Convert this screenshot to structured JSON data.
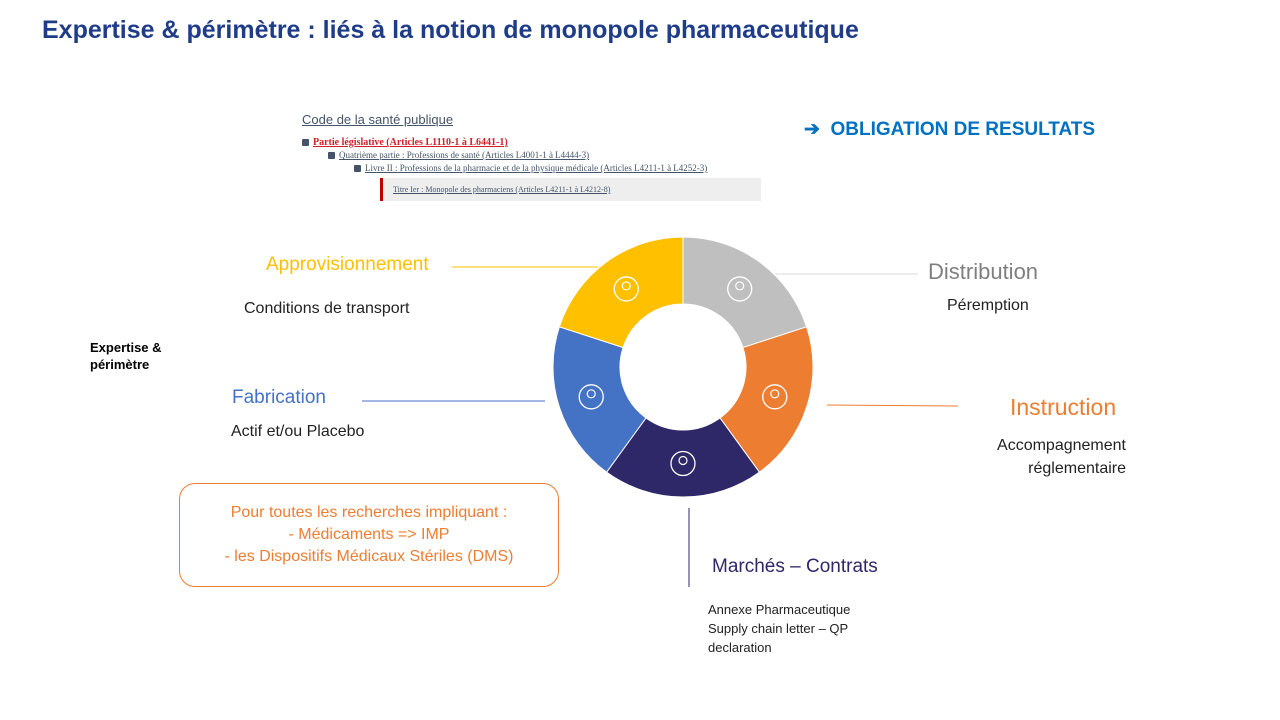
{
  "title": "Expertise & périmètre : liés à la notion de monopole pharmaceutique",
  "obligation": {
    "arrow_icon": "arrow-right-icon",
    "text": "OBLIGATION DE RESULTATS"
  },
  "code": {
    "heading": "Code de la santé publique",
    "items": [
      "Partie législative (Articles L1110-1 à L6441-1)",
      "Quatrième partie : Professions de santé (Articles L4001-1 à L4444-3)",
      "Livre II : Professions de la pharmacie et de la physique médicale (Articles L4211-1 à L4252-3)",
      "Titre Ier : Monopole des pharmaciens (Articles L4211-1 à L4212-8)"
    ]
  },
  "side_label": "Expertise & périmètre",
  "segments": [
    {
      "label": "Distribution",
      "sub": "Péremption",
      "color": "#bfbfbf",
      "icon": "globe-people-icon"
    },
    {
      "label": "Instruction",
      "sub": "Accompagnement réglementaire",
      "color": "#ed7d31",
      "icon": "presentation-chart-icon"
    },
    {
      "label": "Marchés – Contrats",
      "sub": "Annexe Pharmaceutique Supply chain letter – QP declaration",
      "color": "#2e2768",
      "icon": "raised-fists-icon"
    },
    {
      "label": "Fabrication",
      "sub": "Actif et/ou Placebo",
      "color": "#4472c4",
      "icon": "speaker-audience-icon"
    },
    {
      "label": "Approvisionnement",
      "sub": "Conditions de transport",
      "color": "#ffc000",
      "icon": "location-person-icon"
    }
  ],
  "note": [
    "Pour toutes les recherches impliquant :",
    "- Médicaments => IMP",
    "- les Dispositifs Médicaux Stériles (DMS)"
  ]
}
